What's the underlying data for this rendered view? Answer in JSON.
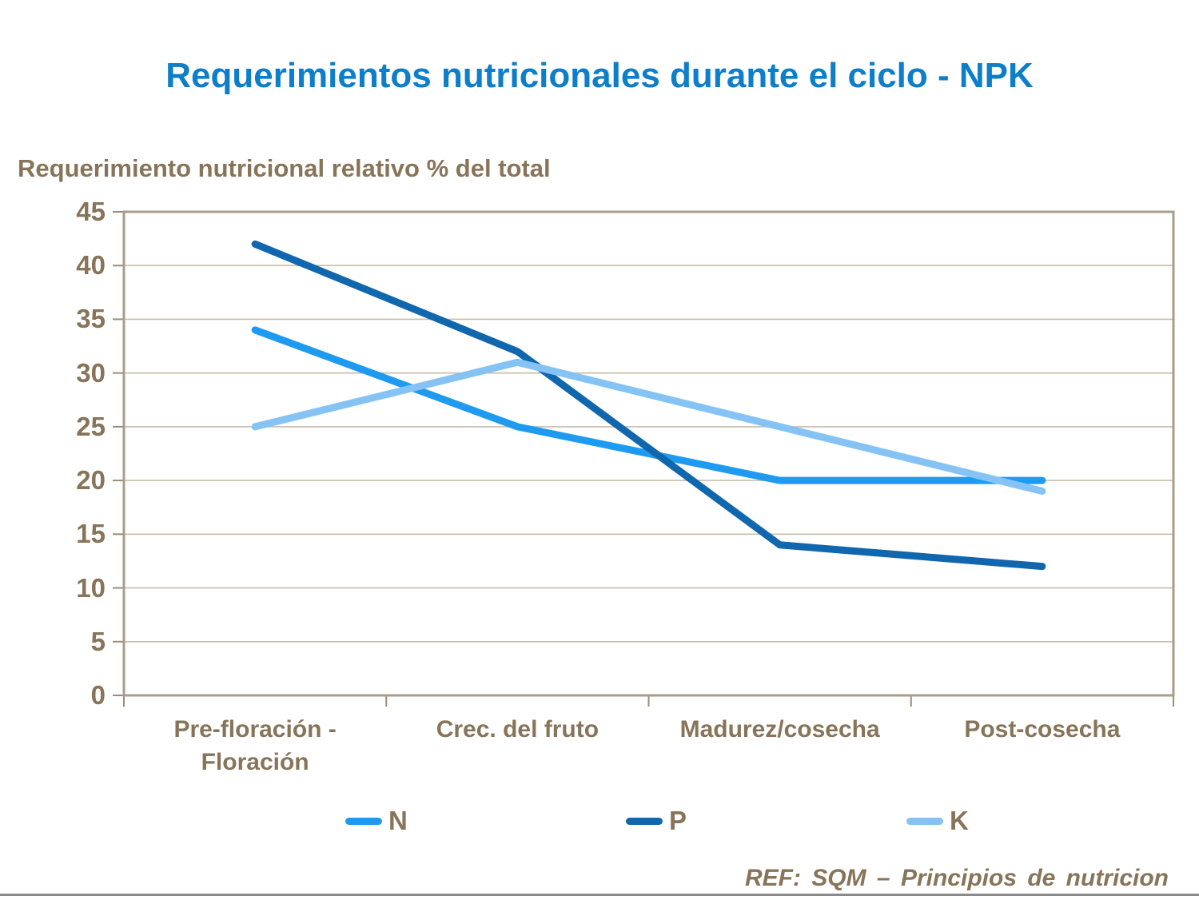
{
  "slide": {
    "title": "Requerimientos nutricionales durante el ciclo - NPK",
    "axis_title": "Requerimiento nutricional relativo % del total",
    "footer": "REF: SQM – Principios de nutricion"
  },
  "colors": {
    "title": "#0d7ec9",
    "text_brown": "#877459",
    "grid": "#c9bcab",
    "border": "#a99c8b",
    "tick": "#9a8c79",
    "bottom_rule": "#8a8a8a",
    "series_n": "#1e9bf0",
    "series_p": "#1167ad",
    "series_k": "#85c3f4"
  },
  "chart_data": {
    "type": "line",
    "title": "Requerimientos nutricionales durante el ciclo - NPK",
    "ylabel": "Requerimiento nutricional relativo % del total",
    "categories": [
      "Pre-floración -\nFloración",
      "Crec. del fruto",
      "Madurez/cosecha",
      "Post-cosecha"
    ],
    "series": [
      {
        "name": "N",
        "values": [
          34,
          25,
          20,
          20
        ],
        "color": "#1e9bf0"
      },
      {
        "name": "P",
        "values": [
          42,
          32,
          14,
          12
        ],
        "color": "#1167ad"
      },
      {
        "name": "K",
        "values": [
          25,
          31,
          25,
          19
        ],
        "color": "#85c3f4"
      }
    ],
    "ylim": [
      0,
      45
    ],
    "ytick_step": 5,
    "grid": true,
    "legend_position": "bottom",
    "annotations": [
      "REF: SQM – Principios de nutricion"
    ]
  },
  "legend": {
    "items": [
      {
        "label": "N"
      },
      {
        "label": "P"
      },
      {
        "label": "K"
      }
    ]
  }
}
